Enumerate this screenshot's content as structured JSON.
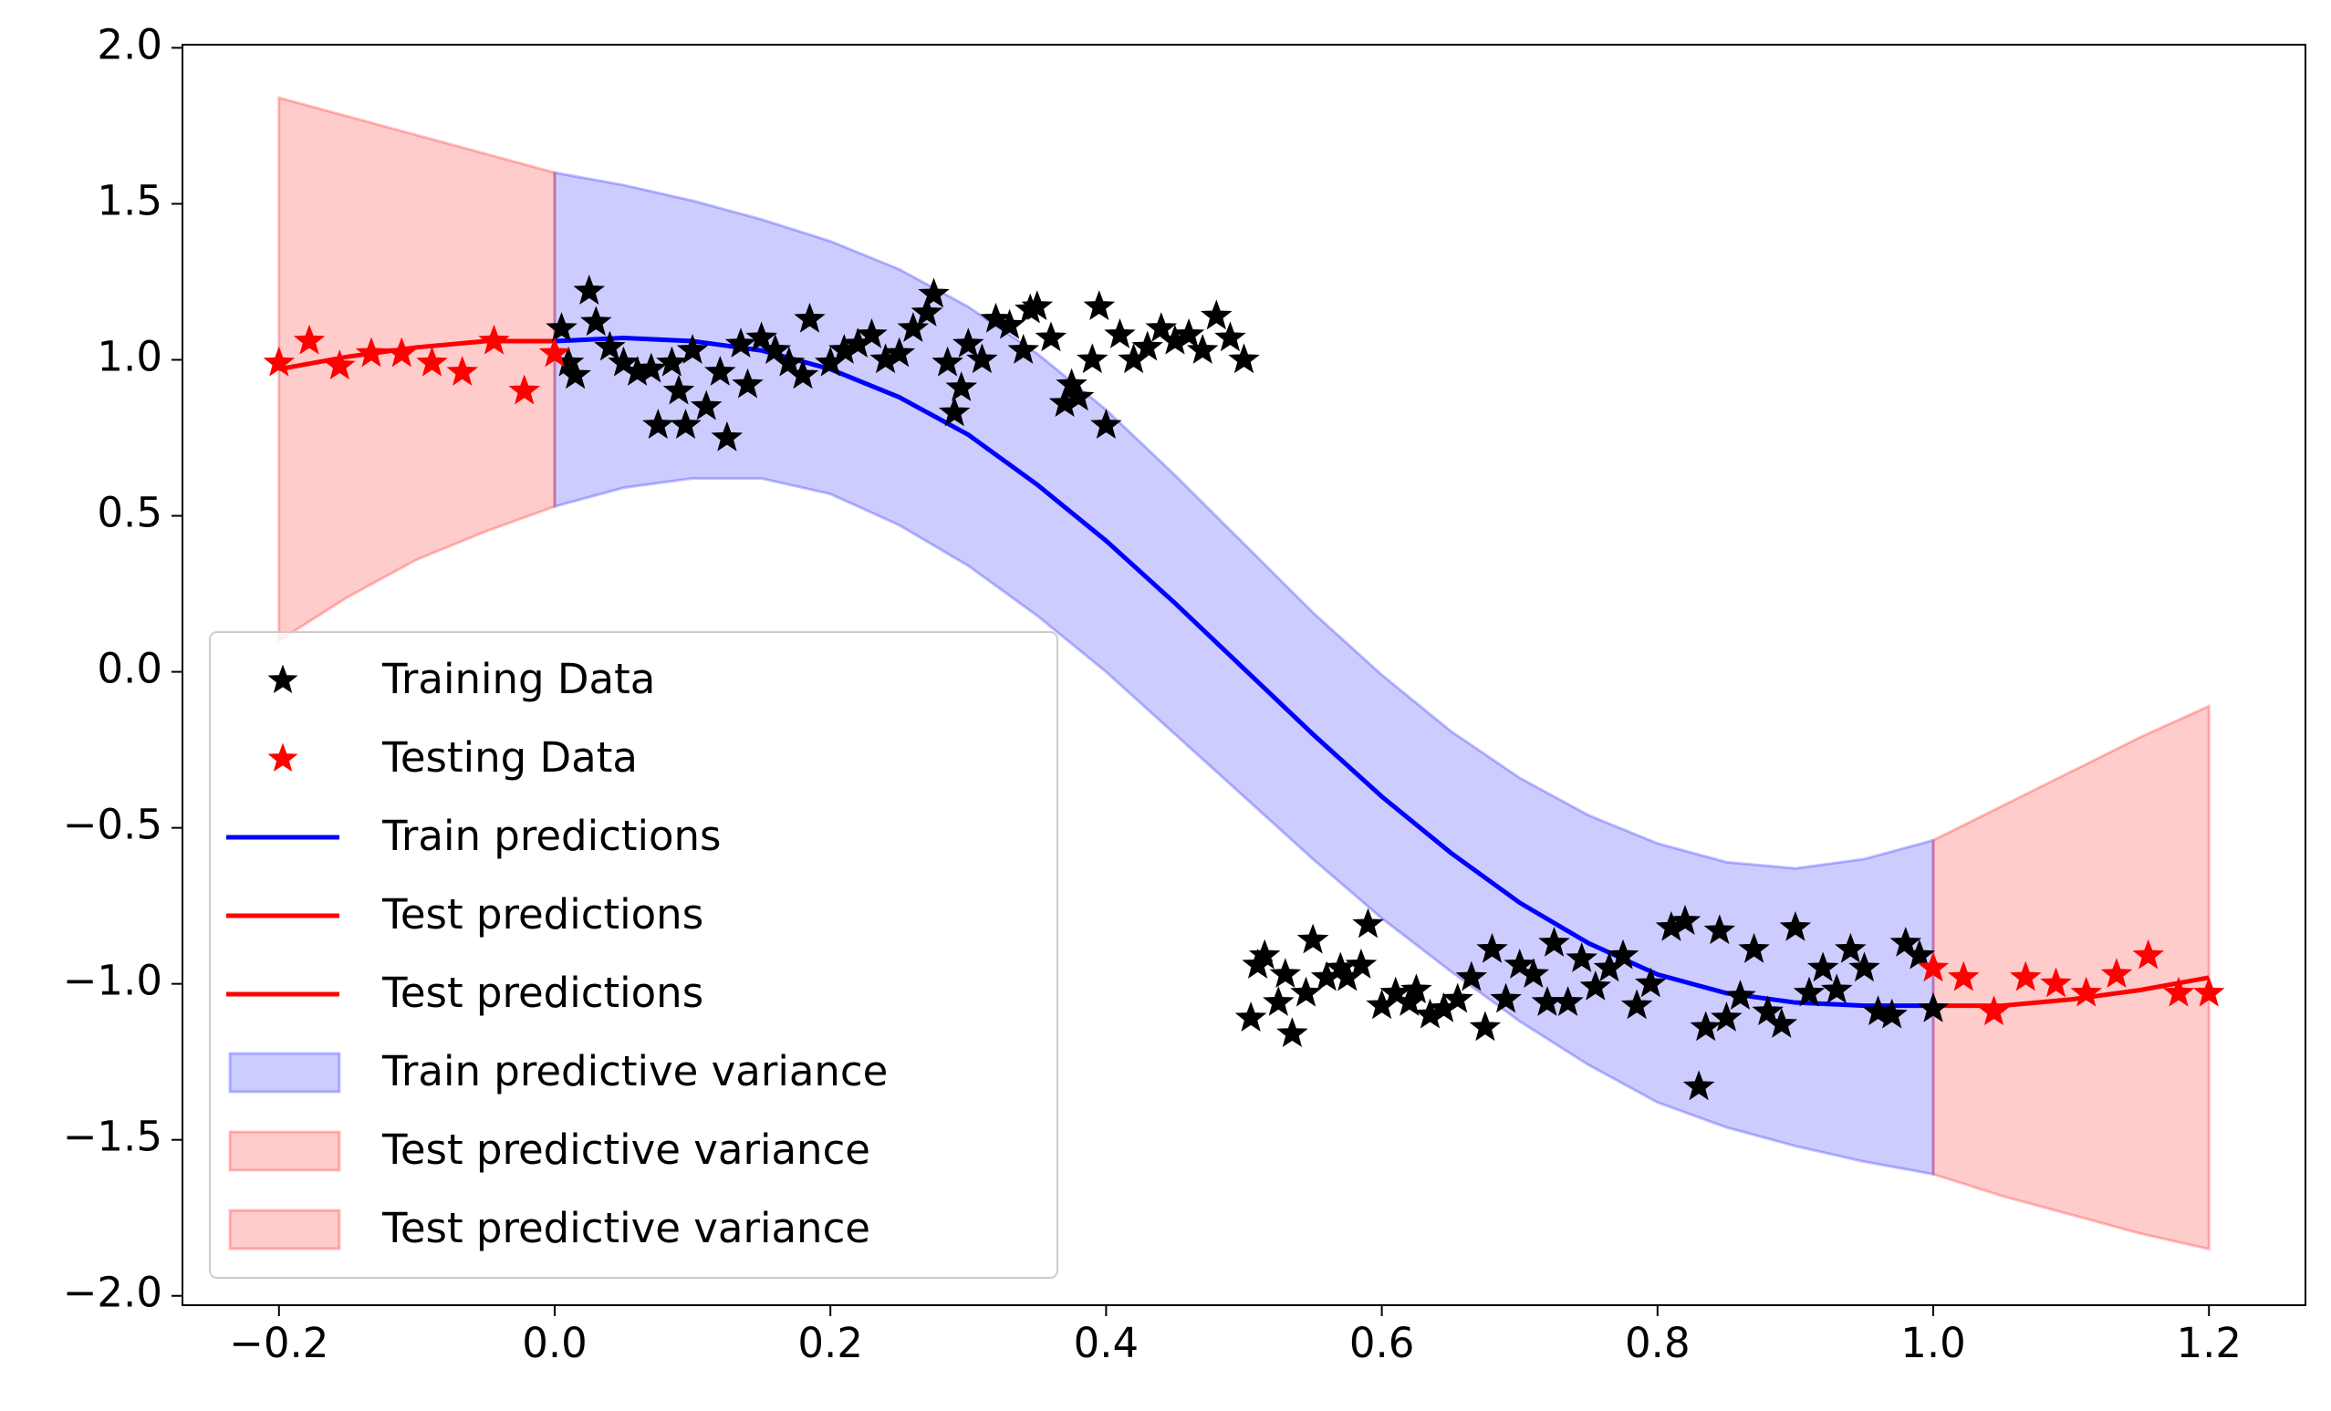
{
  "chart_data": {
    "type": "gp-regression",
    "xlim": [
      -0.27,
      1.27
    ],
    "ylim": [
      -2.03,
      2.01
    ],
    "xticks": [
      {
        "value": -0.2,
        "label": "−0.2"
      },
      {
        "value": 0,
        "label": "0.0"
      },
      0.2,
      0.4,
      0.6,
      0.8,
      {
        "value": 1,
        "label": "1.0"
      },
      1.2
    ],
    "yticks": [
      {
        "value": -2,
        "label": "−2.0"
      },
      {
        "value": -1.5,
        "label": "−1.5"
      },
      {
        "value": -1,
        "label": "−1.0"
      },
      {
        "value": -0.5,
        "label": "−0.5"
      },
      {
        "value": 0,
        "label": "0.0"
      },
      0.5,
      {
        "value": 1,
        "label": "1.0"
      },
      1.5,
      {
        "value": 2,
        "label": "2.0"
      }
    ],
    "legend": "lower left",
    "series": [
      {
        "name": "Training Data",
        "kind": "scatter",
        "color": "#000000",
        "x": [
          0.005,
          0.01,
          0.015,
          0.025,
          0.03,
          0.04,
          0.05,
          0.06,
          0.07,
          0.075,
          0.085,
          0.09,
          0.095,
          0.1,
          0.11,
          0.12,
          0.125,
          0.135,
          0.14,
          0.15,
          0.16,
          0.17,
          0.18,
          0.185,
          0.2,
          0.21,
          0.22,
          0.23,
          0.24,
          0.25,
          0.26,
          0.27,
          0.275,
          0.285,
          0.29,
          0.295,
          0.3,
          0.31,
          0.32,
          0.33,
          0.34,
          0.345,
          0.35,
          0.36,
          0.37,
          0.375,
          0.38,
          0.39,
          0.395,
          0.4,
          0.41,
          0.42,
          0.43,
          0.44,
          0.45,
          0.46,
          0.47,
          0.48,
          0.49,
          0.5,
          0.505,
          0.51,
          0.515,
          0.525,
          0.53,
          0.535,
          0.545,
          0.55,
          0.56,
          0.57,
          0.575,
          0.585,
          0.59,
          0.6,
          0.61,
          0.62,
          0.625,
          0.635,
          0.645,
          0.655,
          0.665,
          0.675,
          0.68,
          0.69,
          0.7,
          0.71,
          0.72,
          0.725,
          0.735,
          0.745,
          0.755,
          0.765,
          0.775,
          0.785,
          0.795,
          0.81,
          0.82,
          0.83,
          0.835,
          0.845,
          0.85,
          0.86,
          0.87,
          0.88,
          0.89,
          0.9,
          0.91,
          0.92,
          0.93,
          0.94,
          0.95,
          0.96,
          0.97,
          0.98,
          0.99,
          1.0
        ],
        "values": [
          1.1,
          0.99,
          0.95,
          1.22,
          1.12,
          1.04,
          0.99,
          0.96,
          0.97,
          0.79,
          0.99,
          0.9,
          0.79,
          1.03,
          0.85,
          0.96,
          0.75,
          1.05,
          0.92,
          1.07,
          1.03,
          0.99,
          0.95,
          1.13,
          0.99,
          1.03,
          1.05,
          1.08,
          1.0,
          1.02,
          1.1,
          1.15,
          1.21,
          0.99,
          0.83,
          0.91,
          1.05,
          1.0,
          1.13,
          1.11,
          1.03,
          1.16,
          1.17,
          1.07,
          0.86,
          0.92,
          0.88,
          1.0,
          1.17,
          0.79,
          1.08,
          1.0,
          1.04,
          1.1,
          1.06,
          1.08,
          1.03,
          1.14,
          1.07,
          1.0,
          -1.11,
          -0.94,
          -0.91,
          -1.06,
          -0.97,
          -1.16,
          -1.03,
          -0.86,
          -0.98,
          -0.95,
          -0.98,
          -0.94,
          -0.81,
          -1.07,
          -1.03,
          -1.06,
          -1.02,
          -1.1,
          -1.08,
          -1.05,
          -0.98,
          -1.14,
          -0.89,
          -1.05,
          -0.94,
          -0.97,
          -1.06,
          -0.87,
          -1.06,
          -0.92,
          -1.01,
          -0.95,
          -0.91,
          -1.07,
          -1.0,
          -0.82,
          -0.8,
          -1.33,
          -1.14,
          -0.83,
          -1.11,
          -1.04,
          -0.89,
          -1.09,
          -1.13,
          -0.82,
          -1.03,
          -0.95,
          -1.02,
          -0.89,
          -0.95,
          -1.09,
          -1.1,
          -0.87,
          -0.91,
          -1.08
        ]
      },
      {
        "name": "Testing Data",
        "kind": "scatter",
        "color": "#ff0000",
        "x": [
          -0.2,
          -0.178,
          -0.156,
          -0.133,
          -0.111,
          -0.089,
          -0.067,
          -0.044,
          -0.022,
          0,
          1.0,
          1.022,
          1.044,
          1.067,
          1.089,
          1.111,
          1.133,
          1.156,
          1.178,
          1.2
        ],
        "values": [
          0.99,
          1.06,
          0.98,
          1.02,
          1.02,
          0.99,
          0.96,
          1.06,
          0.9,
          1.02,
          -0.95,
          -0.98,
          -1.09,
          -0.98,
          -1.0,
          -1.03,
          -0.97,
          -0.91,
          -1.03,
          -1.03
        ]
      },
      {
        "name": "Train predictions",
        "kind": "line",
        "color": "#0000ff",
        "x": [
          0,
          0.05,
          0.1,
          0.15,
          0.2,
          0.25,
          0.3,
          0.35,
          0.4,
          0.45,
          0.5,
          0.55,
          0.6,
          0.65,
          0.7,
          0.75,
          0.8,
          0.85,
          0.9,
          0.95,
          1.0
        ],
        "values": [
          1.06,
          1.07,
          1.06,
          1.03,
          0.97,
          0.88,
          0.76,
          0.6,
          0.42,
          0.22,
          0.01,
          -0.2,
          -0.4,
          -0.58,
          -0.74,
          -0.87,
          -0.97,
          -1.03,
          -1.06,
          -1.07,
          -1.07
        ]
      },
      {
        "name": "Test predictions",
        "kind": "line",
        "color": "#ff0000",
        "x": [
          -0.2,
          -0.15,
          -0.1,
          -0.05,
          0
        ],
        "values": [
          0.97,
          1.01,
          1.04,
          1.06,
          1.06
        ]
      },
      {
        "name": "Test predictions",
        "kind": "line",
        "color": "#ff0000",
        "x": [
          1.0,
          1.05,
          1.1,
          1.15,
          1.2
        ],
        "values": [
          -1.07,
          -1.07,
          -1.05,
          -1.02,
          -0.98
        ]
      },
      {
        "name": "Train predictive variance",
        "kind": "band",
        "color": "#0000ff",
        "x": [
          0,
          0.05,
          0.1,
          0.15,
          0.2,
          0.25,
          0.3,
          0.35,
          0.4,
          0.45,
          0.5,
          0.55,
          0.6,
          0.65,
          0.7,
          0.75,
          0.8,
          0.85,
          0.9,
          0.95,
          1.0
        ],
        "upper": [
          1.6,
          1.56,
          1.51,
          1.45,
          1.38,
          1.29,
          1.17,
          1.02,
          0.84,
          0.63,
          0.41,
          0.19,
          -0.01,
          -0.19,
          -0.34,
          -0.46,
          -0.55,
          -0.61,
          -0.63,
          -0.6,
          -0.54
        ],
        "lower": [
          0.53,
          0.59,
          0.62,
          0.62,
          0.57,
          0.47,
          0.34,
          0.18,
          0.0,
          -0.2,
          -0.4,
          -0.6,
          -0.79,
          -0.96,
          -1.12,
          -1.26,
          -1.38,
          -1.46,
          -1.52,
          -1.57,
          -1.61
        ]
      },
      {
        "name": "Test predictive variance",
        "kind": "band",
        "color": "#ff0000",
        "x": [
          -0.2,
          -0.15,
          -0.1,
          -0.05,
          0
        ],
        "upper": [
          1.84,
          1.78,
          1.72,
          1.66,
          1.6
        ],
        "lower": [
          0.1,
          0.24,
          0.36,
          0.45,
          0.53
        ]
      },
      {
        "name": "Test predictive variance",
        "kind": "band",
        "color": "#ff0000",
        "x": [
          1.0,
          1.05,
          1.1,
          1.15,
          1.2
        ],
        "upper": [
          -0.54,
          -0.43,
          -0.32,
          -0.21,
          -0.11
        ],
        "lower": [
          -1.61,
          -1.68,
          -1.74,
          -1.8,
          -1.85
        ]
      }
    ]
  }
}
